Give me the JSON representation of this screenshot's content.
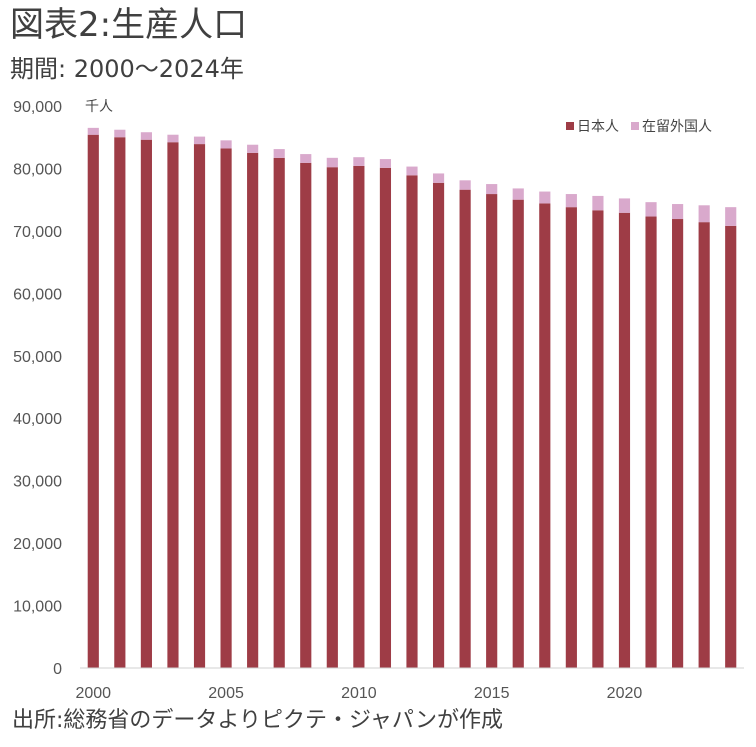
{
  "title": "図表2:生産人口",
  "subtitle": "期間: 2000～2024年",
  "source": "出所:総務省のデータよりピクテ・ジャパンが作成",
  "chart_data": {
    "type": "bar",
    "stacked": true,
    "unit_label": "千人",
    "categories": [
      "2000",
      "2001",
      "2002",
      "2003",
      "2004",
      "2005",
      "2006",
      "2007",
      "2008",
      "2009",
      "2010",
      "2011",
      "2012",
      "2013",
      "2014",
      "2015",
      "2016",
      "2017",
      "2018",
      "2019",
      "2020",
      "2021",
      "2022",
      "2023",
      "2024"
    ],
    "x_tick_labels": [
      "2000",
      "",
      "",
      "",
      "",
      "2005",
      "",
      "",
      "",
      "",
      "2010",
      "",
      "",
      "",
      "",
      "2015",
      "",
      "",
      "",
      "",
      "2020",
      "",
      "",
      "",
      ""
    ],
    "ylim": [
      0,
      90000
    ],
    "y_ticks": [
      0,
      10000,
      20000,
      30000,
      40000,
      50000,
      60000,
      70000,
      80000,
      90000
    ],
    "y_tick_labels": [
      "0",
      "10,000",
      "20,000",
      "30,000",
      "40,000",
      "50,000",
      "60,000",
      "70,000",
      "80,000",
      "90,000"
    ],
    "grid": false,
    "legend_position": "top-right",
    "series": [
      {
        "name": "日本人",
        "color": "#9e3c46",
        "values": [
          85400,
          85000,
          84600,
          84200,
          83900,
          83200,
          82500,
          81700,
          80900,
          80200,
          80400,
          80100,
          78900,
          77700,
          76600,
          75900,
          75000,
          74400,
          73800,
          73300,
          72900,
          72300,
          71900,
          71400,
          70800
        ]
      },
      {
        "name": "在留外国人",
        "color": "#d9a9cc",
        "values": [
          1100,
          1200,
          1200,
          1200,
          1200,
          1300,
          1300,
          1400,
          1400,
          1500,
          1400,
          1400,
          1400,
          1500,
          1500,
          1600,
          1800,
          1900,
          2100,
          2300,
          2300,
          2300,
          2400,
          2700,
          3000
        ]
      }
    ]
  }
}
